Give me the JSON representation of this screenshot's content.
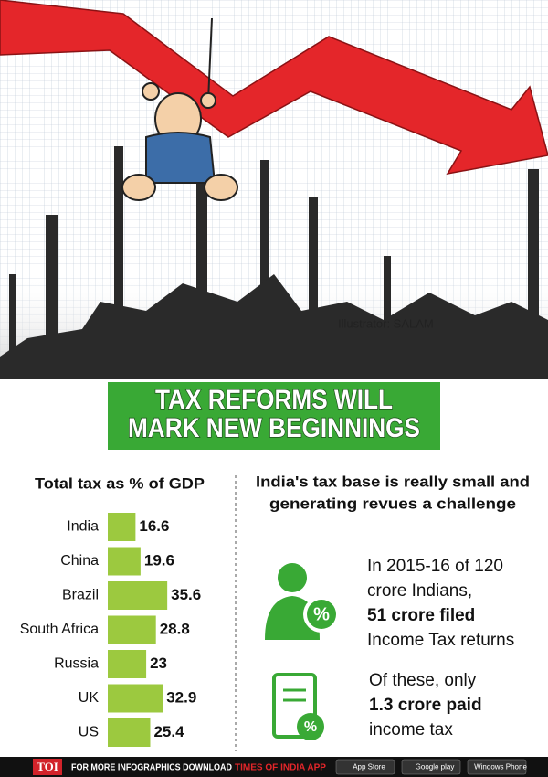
{
  "illustration_credit": "Illustrator: SALAM",
  "banner": {
    "lines": [
      "TAX REFORMS WILL",
      "MARK NEW BEGINNINGS"
    ]
  },
  "chart_data": {
    "type": "bar",
    "title": "Total tax as % of GDP",
    "categories": [
      "India",
      "China",
      "Brazil",
      "South Africa",
      "Russia",
      "UK",
      "US"
    ],
    "values": [
      16.6,
      19.6,
      35.6,
      28.8,
      23,
      32.9,
      25.4
    ],
    "color": "#9cc93f"
  },
  "right": {
    "heading": [
      "India's tax base is really small and",
      "generating revues a challenge"
    ],
    "items": [
      {
        "lines": [
          {
            "text": "In 2015-16 of 120",
            "bold": false
          },
          {
            "text": "crore Indians,",
            "bold": false
          },
          {
            "text": "51 crore filed",
            "bold": true
          },
          {
            "text": "Income Tax returns",
            "bold": false
          }
        ]
      },
      {
        "lines": [
          {
            "text": "Of these, only",
            "bold": false
          },
          {
            "text": "1.3 crore paid",
            "bold": true
          },
          {
            "text": "income tax",
            "bold": false
          }
        ]
      }
    ]
  },
  "footer": {
    "brand": "TOI",
    "text": "FOR MORE  INFOGRAPHICS DOWNLOAD",
    "app": "TIMES OF INDIA  APP",
    "badges": [
      "App Store",
      "Google play",
      "Windows Phone"
    ]
  }
}
